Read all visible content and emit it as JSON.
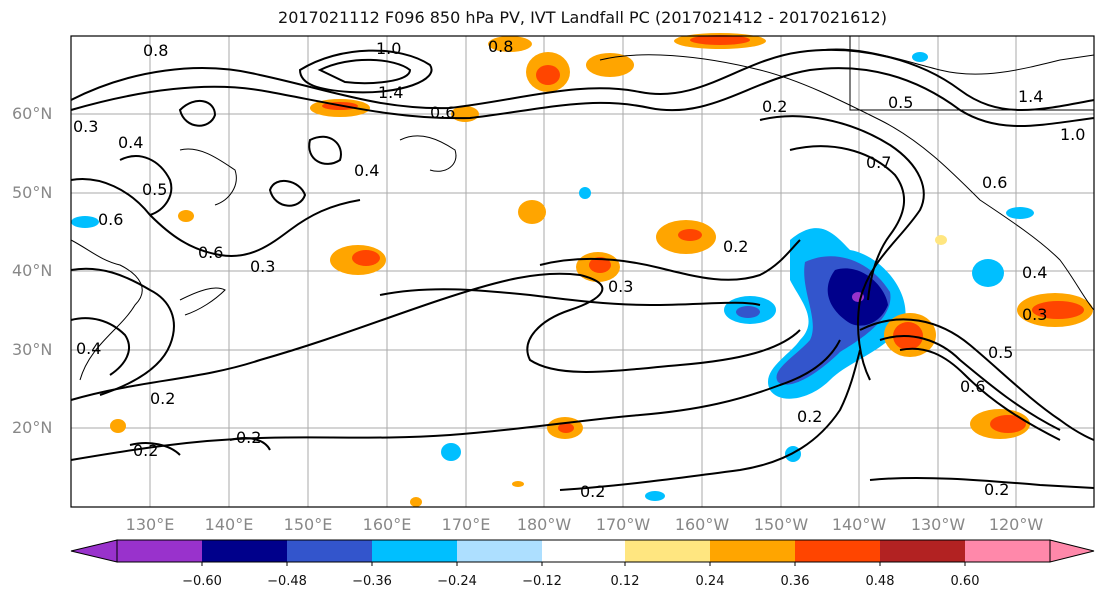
{
  "title": "2017021112 F096 850 hPa PV, IVT Landfall PC (2017021412 - 2017021612)",
  "lat_labels": [
    "60°N",
    "50°N",
    "40°N",
    "30°N",
    "20°N"
  ],
  "lon_labels": [
    "130°E",
    "140°E",
    "150°E",
    "160°E",
    "170°E",
    "180°W",
    "170°W",
    "160°W",
    "150°W",
    "140°W",
    "130°W",
    "120°W"
  ],
  "contour_labels": [
    "0.8",
    "1.0",
    "0.8",
    "1.4",
    "0.6",
    "0.4",
    "0.3",
    "0.5",
    "0.6",
    "0.6",
    "0.3",
    "0.4",
    "0.4",
    "0.2",
    "0.2",
    "0.2",
    "0.3",
    "0.2",
    "0.2",
    "0.2",
    "0.2",
    "0.2",
    "0.7",
    "0.6",
    "0.5",
    "0.6",
    "1.4",
    "1.0",
    "0.3",
    "0.4",
    "0.5"
  ],
  "colorbar": {
    "ticks": [
      "−0.60",
      "−0.48",
      "−0.36",
      "−0.24",
      "−0.12",
      "0.12",
      "0.24",
      "0.36",
      "0.48",
      "0.60"
    ],
    "colors": [
      "#9932CC",
      "#00008B",
      "#3355CC",
      "#00BFFF",
      "#ADDFFF",
      "#FFFFFF",
      "#FFE680",
      "#FFA500",
      "#FF4500",
      "#B22222",
      "#FF88AA"
    ]
  }
}
